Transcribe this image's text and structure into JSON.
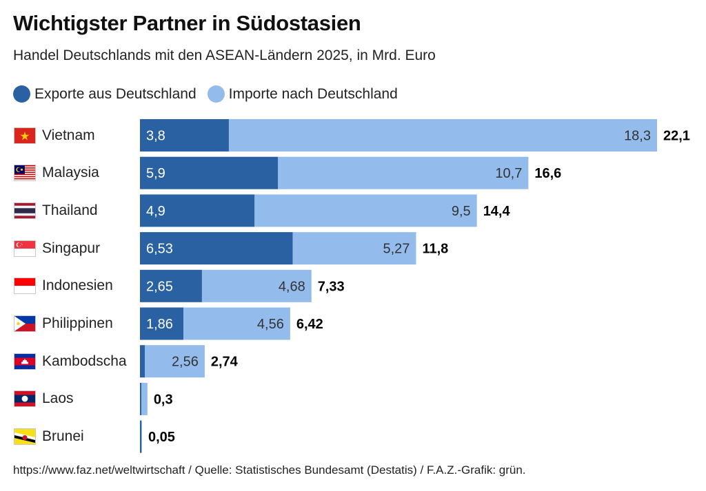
{
  "header": {
    "title": "Wichtigster Partner in Südostasien",
    "subtitle": "Handel Deutschlands mit den ASEAN-Ländern 2025, in Mrd. Euro"
  },
  "legend": [
    {
      "label": "Exporte aus Deutschland",
      "color": "#2a61a3"
    },
    {
      "label": "Importe nach Deutschland",
      "color": "#93bbec"
    }
  ],
  "footer": "https://www.faz.net/weltwirtschaft / Quelle: Statistisches Bundesamt (Destatis) / F.A.Z.-Grafik: grün.",
  "chart_data": {
    "type": "bar",
    "orientation": "horizontal",
    "stacked": true,
    "title": "Wichtigster Partner in Südostasien",
    "subtitle": "Handel Deutschlands mit den ASEAN-Ländern 2025, in Mrd. Euro",
    "categories": [
      "Vietnam",
      "Malaysia",
      "Thailand",
      "Singapur",
      "Indonesien",
      "Philippinen",
      "Kambodscha",
      "Laos",
      "Brunei"
    ],
    "flags": [
      "vietnam-flag",
      "malaysia-flag",
      "thailand-flag",
      "singapore-flag",
      "indonesia-flag",
      "philippines-flag",
      "cambodia-flag",
      "laos-flag",
      "brunei-flag"
    ],
    "series": [
      {
        "name": "Exporte aus Deutschland",
        "color": "#2a61a3",
        "values": [
          3.8,
          5.9,
          4.9,
          6.53,
          2.65,
          1.86,
          0.18,
          0.04,
          0.03
        ],
        "labels": [
          "3,8",
          "5,9",
          "4,9",
          "6,53",
          "2,65",
          "1,86",
          "",
          "",
          ""
        ]
      },
      {
        "name": "Importe nach Deutschland",
        "color": "#93bbec",
        "values": [
          18.3,
          10.7,
          9.5,
          5.27,
          4.68,
          4.56,
          2.56,
          0.26,
          0.02
        ],
        "labels": [
          "18,3",
          "10,7",
          "9,5",
          "5,27",
          "4,68",
          "4,56",
          "2,56",
          "",
          ""
        ]
      }
    ],
    "totals": [
      22.1,
      16.6,
      14.4,
      11.8,
      7.33,
      6.42,
      2.74,
      0.3,
      0.05
    ],
    "total_labels": [
      "22,1",
      "16,6",
      "14,4",
      "11,8",
      "7,33",
      "6,42",
      "2,74",
      "0,3",
      "0,05"
    ],
    "xlim": [
      0,
      22.1
    ],
    "xlabel": "",
    "ylabel": "",
    "grid": false,
    "legend_position": "top-left"
  }
}
